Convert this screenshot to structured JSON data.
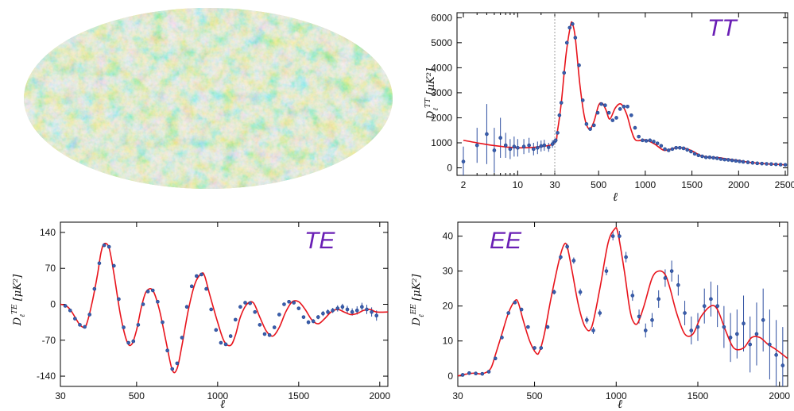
{
  "sky_map": {
    "name": "CMB temperature sky map (Mollweide projection)"
  },
  "colors": {
    "model_line": "#e8141c",
    "data_points": "#3a5fae",
    "spectrum_label": "#6a1fb5"
  },
  "chart_data": [
    {
      "id": "tt",
      "type": "line",
      "label": "TT",
      "xlabel": "ℓ",
      "ylabel": "D_ℓ^TT [μK²]",
      "x_scale": "hybrid: logarithmic for ℓ ≤ 30, linear for ℓ > 30",
      "ylim": [
        -300,
        6200
      ],
      "yticks": [
        0,
        1000,
        2000,
        3000,
        4000,
        5000,
        6000
      ],
      "xticks": [
        2,
        10,
        30,
        500,
        1000,
        1500,
        2000,
        2500
      ],
      "xtick_labels": [
        "2",
        "10",
        "30",
        "500",
        "1000",
        "1500",
        "2000",
        "2500"
      ],
      "minor_xticks_log": [
        3,
        4,
        5,
        6,
        7,
        8,
        9,
        20
      ],
      "grid": false,
      "series": [
        {
          "kind": "model",
          "x": [
            2,
            3,
            5,
            10,
            20,
            30,
            60,
            100,
            150,
            200,
            220,
            250,
            300,
            350,
            400,
            450,
            500,
            540,
            580,
            620,
            680,
            740,
            800,
            850,
            900,
            1000,
            1100,
            1200,
            1300,
            1400,
            1500,
            1600,
            1700,
            1800,
            1900,
            2000,
            2100,
            2200,
            2300,
            2400,
            2500
          ],
          "y": [
            1100,
            1000,
            890,
            800,
            850,
            1000,
            1500,
            2600,
            4500,
            5700,
            5750,
            5200,
            3300,
            2000,
            1550,
            1850,
            2500,
            2580,
            2300,
            1950,
            2400,
            2550,
            2150,
            1500,
            1100,
            1120,
            950,
            700,
            780,
            800,
            680,
            480,
            420,
            400,
            340,
            290,
            230,
            190,
            160,
            140,
            120
          ]
        },
        {
          "kind": "data",
          "x": [
            2,
            3,
            4,
            5,
            6,
            7,
            8,
            9,
            10,
            12,
            14,
            16,
            18,
            20,
            22,
            25,
            28,
            30,
            40,
            60,
            80,
            100,
            130,
            160,
            190,
            220,
            250,
            290,
            330,
            370,
            410,
            450,
            490,
            530,
            570,
            610,
            650,
            690,
            730,
            770,
            810,
            850,
            890,
            930,
            970,
            1010,
            1050,
            1090,
            1130,
            1170,
            1210,
            1250,
            1290,
            1330,
            1370,
            1410,
            1450,
            1490,
            1530,
            1570,
            1610,
            1650,
            1690,
            1730,
            1770,
            1810,
            1850,
            1890,
            1930,
            1970,
            2010,
            2050,
            2100,
            2150,
            2200,
            2250,
            2300,
            2350,
            2400,
            2450,
            2500
          ],
          "y": [
            250,
            900,
            1350,
            700,
            1200,
            900,
            750,
            850,
            800,
            850,
            900,
            750,
            800,
            870,
            900,
            820,
            950,
            1050,
            1100,
            1400,
            2100,
            2600,
            3800,
            5000,
            5600,
            5750,
            5200,
            4100,
            2700,
            1750,
            1550,
            1700,
            2200,
            2550,
            2500,
            2200,
            1900,
            2000,
            2350,
            2450,
            2450,
            2100,
            1600,
            1250,
            1100,
            1080,
            1100,
            1050,
            980,
            880,
            750,
            700,
            750,
            800,
            800,
            780,
            720,
            650,
            560,
            500,
            460,
            420,
            420,
            400,
            380,
            350,
            330,
            320,
            300,
            280,
            260,
            240,
            220,
            200,
            180,
            170,
            160,
            150,
            140,
            130,
            120
          ],
          "err": [
            600,
            700,
            1200,
            900,
            800,
            500,
            400,
            400,
            350,
            300,
            300,
            250,
            250,
            220,
            220,
            180,
            150,
            120,
            60,
            50,
            50,
            50,
            60,
            60,
            60,
            60,
            60,
            50,
            40,
            40,
            40,
            40,
            40,
            40,
            40,
            40,
            40,
            40,
            40,
            40,
            40,
            40,
            40,
            40,
            40,
            35,
            35,
            35,
            35,
            35,
            35,
            35,
            35,
            35,
            35,
            35,
            35,
            35,
            35,
            35,
            35,
            35,
            35,
            35,
            35,
            35,
            35,
            35,
            35,
            35,
            35,
            35,
            35,
            35,
            35,
            35,
            35,
            35,
            35,
            35,
            35
          ]
        }
      ]
    },
    {
      "id": "te",
      "type": "line",
      "label": "TE",
      "xlabel": "ℓ",
      "ylabel": "D_ℓ^TE [μK²]",
      "xlim": [
        30,
        2050
      ],
      "ylim": [
        -160,
        160
      ],
      "yticks": [
        140,
        70,
        0,
        -70,
        -140
      ],
      "xticks": [
        30,
        500,
        1000,
        1500,
        2000
      ],
      "grid": false,
      "series": [
        {
          "kind": "model",
          "x": [
            30,
            60,
            90,
            120,
            150,
            180,
            200,
            230,
            260,
            280,
            300,
            330,
            360,
            400,
            440,
            470,
            500,
            530,
            560,
            600,
            640,
            680,
            720,
            750,
            780,
            820,
            860,
            900,
            920,
            950,
            1000,
            1040,
            1080,
            1110,
            1140,
            1180,
            1220,
            1260,
            1300,
            1340,
            1380,
            1420,
            1460,
            1500,
            1540,
            1580,
            1620,
            1660,
            1700,
            1740,
            1780,
            1820,
            1860,
            1900,
            1940,
            1980,
            2050
          ],
          "y": [
            0,
            -2,
            -10,
            -25,
            -40,
            -45,
            -30,
            10,
            60,
            100,
            118,
            110,
            60,
            -20,
            -72,
            -78,
            -50,
            -5,
            25,
            27,
            -10,
            -70,
            -128,
            -125,
            -80,
            -10,
            40,
            60,
            55,
            20,
            -35,
            -72,
            -80,
            -60,
            -25,
            0,
            3,
            -25,
            -52,
            -62,
            -45,
            -15,
            5,
            5,
            -10,
            -30,
            -38,
            -28,
            -15,
            -10,
            -15,
            -20,
            -18,
            -12,
            -10,
            -15,
            -15
          ]
        },
        {
          "kind": "data",
          "x": [
            60,
            90,
            120,
            150,
            180,
            210,
            240,
            270,
            300,
            330,
            360,
            390,
            420,
            450,
            480,
            510,
            540,
            570,
            600,
            630,
            660,
            690,
            720,
            750,
            780,
            810,
            840,
            870,
            900,
            930,
            960,
            990,
            1020,
            1050,
            1080,
            1110,
            1140,
            1170,
            1200,
            1230,
            1260,
            1290,
            1320,
            1350,
            1380,
            1410,
            1440,
            1470,
            1500,
            1530,
            1560,
            1590,
            1620,
            1650,
            1680,
            1710,
            1740,
            1770,
            1800,
            1830,
            1860,
            1890,
            1920,
            1950,
            1980
          ],
          "y": [
            -3,
            -12,
            -28,
            -40,
            -44,
            -20,
            30,
            80,
            115,
            112,
            75,
            10,
            -45,
            -75,
            -72,
            -40,
            0,
            25,
            27,
            5,
            -35,
            -90,
            -126,
            -115,
            -65,
            -5,
            35,
            55,
            58,
            30,
            -10,
            -50,
            -75,
            -78,
            -62,
            -30,
            -5,
            3,
            2,
            -15,
            -40,
            -58,
            -60,
            -45,
            -20,
            0,
            5,
            3,
            -8,
            -25,
            -35,
            -33,
            -25,
            -18,
            -15,
            -12,
            -8,
            -5,
            -10,
            -15,
            -12,
            -5,
            -10,
            -15,
            -22
          ],
          "err": [
            3,
            3,
            3,
            3,
            3,
            3,
            3,
            3,
            3,
            3,
            3,
            3,
            3,
            3,
            3,
            3,
            3,
            3,
            3,
            3,
            3,
            3,
            3,
            3,
            3,
            3,
            3,
            3,
            3,
            3,
            3,
            3,
            3,
            3,
            3,
            3,
            3,
            3,
            3,
            3,
            3,
            3,
            3,
            3,
            3,
            3,
            3,
            3,
            3,
            3,
            4,
            4,
            4,
            5,
            5,
            5,
            6,
            6,
            7,
            7,
            8,
            8,
            9,
            9,
            10
          ]
        }
      ]
    },
    {
      "id": "ee",
      "type": "line",
      "label": "EE",
      "xlabel": "ℓ",
      "ylabel": "D_ℓ^EE [μK²]",
      "xlim": [
        30,
        2050
      ],
      "ylim": [
        -3,
        44
      ],
      "yticks": [
        0,
        10,
        20,
        30,
        40
      ],
      "xticks": [
        30,
        500,
        1000,
        1500,
        2000
      ],
      "grid": false,
      "series": [
        {
          "kind": "model",
          "x": [
            30,
            80,
            130,
            180,
            230,
            260,
            300,
            340,
            380,
            400,
            430,
            470,
            510,
            530,
            560,
            600,
            650,
            680,
            700,
            730,
            770,
            810,
            850,
            900,
            950,
            990,
            1010,
            1050,
            1080,
            1100,
            1130,
            1170,
            1220,
            1260,
            1300,
            1330,
            1370,
            1420,
            1470,
            1520,
            1580,
            1620,
            1670,
            1720,
            1780,
            1830,
            1880,
            1930,
            1980,
            2050
          ],
          "y": [
            0,
            0.5,
            0.8,
            0.6,
            2,
            6,
            12,
            18,
            21.5,
            21,
            16,
            10,
            6.5,
            7,
            12,
            22,
            33,
            37.5,
            37,
            30,
            20,
            14,
            14,
            25,
            38,
            42,
            41,
            30,
            20,
            16,
            15,
            20,
            28,
            30,
            29,
            25,
            18,
            12,
            12,
            17,
            20,
            19,
            13,
            8,
            8,
            11,
            11,
            9,
            7.5,
            5
          ]
        },
        {
          "kind": "data",
          "x": [
            60,
            100,
            140,
            180,
            220,
            260,
            300,
            340,
            380,
            420,
            460,
            500,
            540,
            580,
            620,
            660,
            700,
            740,
            780,
            820,
            860,
            900,
            940,
            980,
            1020,
            1060,
            1100,
            1140,
            1180,
            1220,
            1260,
            1300,
            1340,
            1380,
            1420,
            1460,
            1500,
            1540,
            1580,
            1620,
            1660,
            1700,
            1740,
            1780,
            1820,
            1860,
            1900,
            1940,
            1980,
            2020
          ],
          "y": [
            0.3,
            0.8,
            0.7,
            0.6,
            1.2,
            5,
            11,
            18,
            21,
            19,
            14,
            8,
            8,
            14,
            24,
            34,
            37,
            33,
            24,
            16,
            13,
            18,
            30,
            40,
            40,
            34,
            23,
            17,
            13,
            16,
            22,
            28,
            30,
            26,
            18,
            13,
            14,
            20,
            22,
            20,
            14,
            11,
            12,
            15,
            9,
            12,
            16,
            9,
            6,
            3
          ],
          "err": [
            0.5,
            0.5,
            0.5,
            0.5,
            0.5,
            0.5,
            0.5,
            0.5,
            0.5,
            0.5,
            0.5,
            0.5,
            0.5,
            0.6,
            0.7,
            0.8,
            0.8,
            0.9,
            1,
            1,
            1,
            1,
            1.2,
            1.2,
            1.5,
            1.5,
            1.5,
            2,
            2,
            2,
            2.5,
            2.5,
            3,
            3,
            3.5,
            4,
            4,
            5,
            5,
            6,
            6,
            7,
            7,
            8,
            8,
            9,
            9,
            10,
            10,
            11
          ]
        }
      ]
    }
  ]
}
